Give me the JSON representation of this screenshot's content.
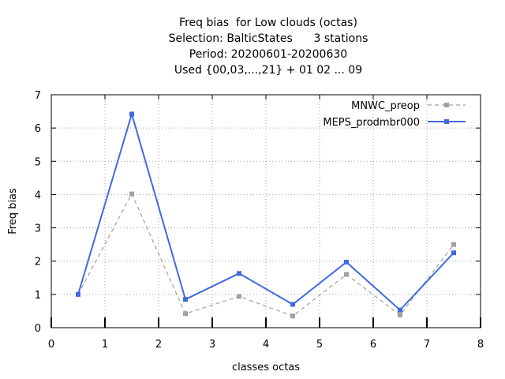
{
  "chart_data": {
    "type": "line",
    "title_lines": [
      "Freq bias  for Low clouds (octas)",
      "Selection: BalticStates      3 stations",
      "Period: 20200601-20200630",
      "Used {00,03,...,21} + 01 02 ... 09"
    ],
    "xlabel": "classes octas",
    "ylabel": "Freq bias",
    "xlim": [
      0,
      8
    ],
    "ylim": [
      0,
      7
    ],
    "xticks": [
      0,
      1,
      2,
      3,
      4,
      5,
      6,
      7,
      8
    ],
    "yticks": [
      0,
      1,
      2,
      3,
      4,
      5,
      6,
      7
    ],
    "grid": true,
    "legend_position": "top-right",
    "x": [
      0.5,
      1.5,
      2.5,
      3.5,
      4.5,
      5.5,
      6.5,
      7.5
    ],
    "series": [
      {
        "name": "MNWC_preop",
        "color": "#a0a0a0",
        "dashed": true,
        "values": [
          1.0,
          4.02,
          0.42,
          0.94,
          0.35,
          1.6,
          0.38,
          2.5
        ]
      },
      {
        "name": "MEPS_prodmbr000",
        "color": "#4169e1",
        "dashed": false,
        "values": [
          1.0,
          6.42,
          0.85,
          1.63,
          0.7,
          1.97,
          0.53,
          2.25
        ]
      }
    ]
  }
}
